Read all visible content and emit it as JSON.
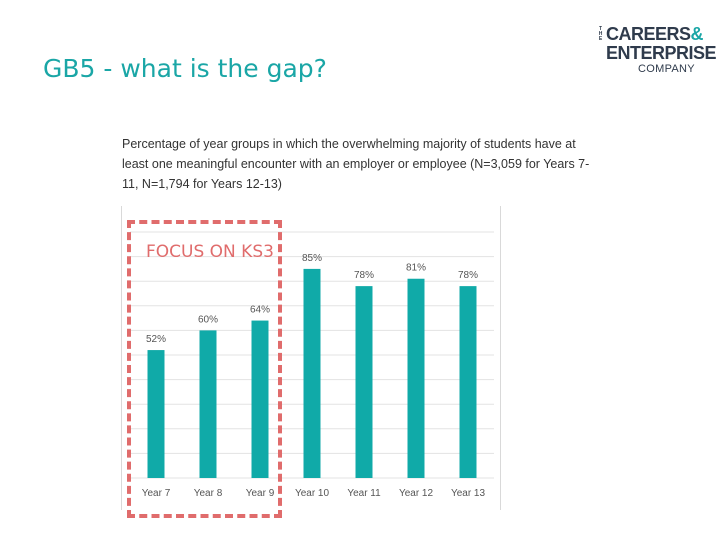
{
  "slide": {
    "title": "GB5 - what is the gap?"
  },
  "logo": {
    "the": "THE",
    "line1": "CAREERS",
    "ampersand": "&",
    "line2": "ENTERPRISE",
    "line3": "COMPANY"
  },
  "chart_data": {
    "type": "bar",
    "title": "Percentage of year groups in which the overwhelming majority of students have at least one meaningful encounter with an employer or employee (N=3,059 for Years 7-11, N=1,794 for Years 12-13)",
    "categories": [
      "Year 7",
      "Year 8",
      "Year 9",
      "Year 10",
      "Year 11",
      "Year 12",
      "Year 13"
    ],
    "values": [
      52,
      60,
      64,
      85,
      78,
      81,
      78
    ],
    "value_labels": [
      "52%",
      "60%",
      "64%",
      "85%",
      "78%",
      "81%",
      "78%"
    ],
    "ylim": [
      0,
      100
    ],
    "grid": true,
    "colors": {
      "bar": "#10aaa8",
      "grid": "#e3e3e3"
    }
  },
  "annotation": {
    "focus_label": "FOCUS ON KS3"
  }
}
